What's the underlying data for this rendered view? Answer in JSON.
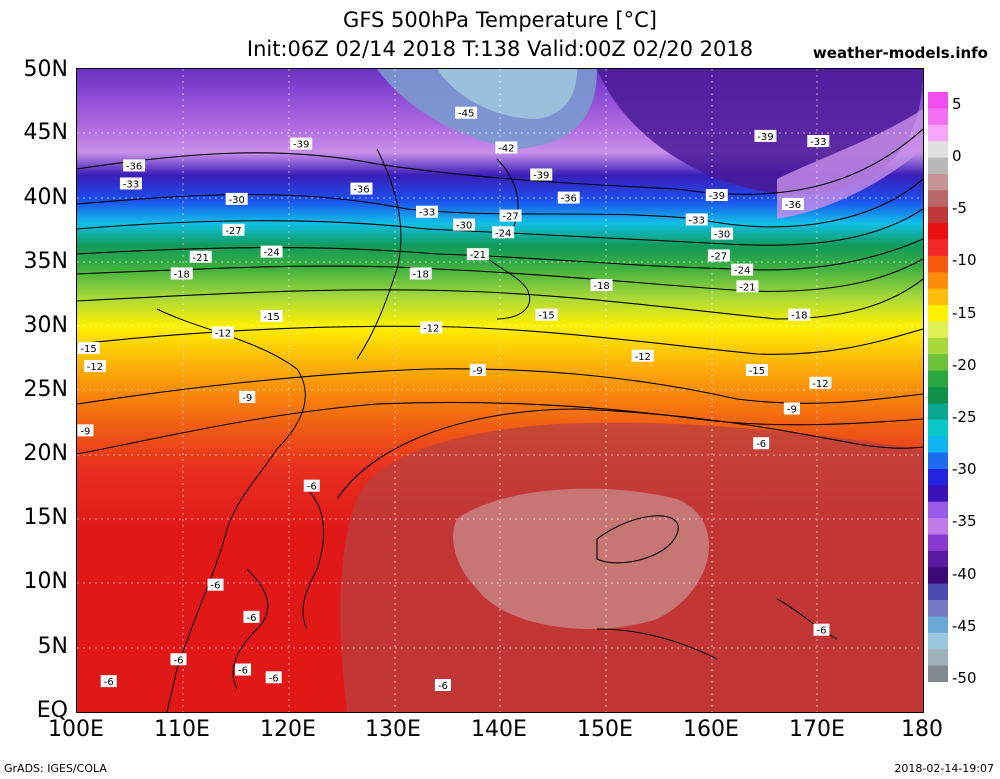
{
  "header": {
    "title_line1": "GFS 500hPa Temperature [°C]",
    "title_line2": "Init:06Z 02/14 2018 T:138 Valid:00Z 02/20 2018",
    "site": "weather-models.info"
  },
  "axes": {
    "lat_labels": [
      "50N",
      "45N",
      "40N",
      "35N",
      "30N",
      "25N",
      "20N",
      "15N",
      "10N",
      "5N",
      "EQ"
    ],
    "lon_labels": [
      "100E",
      "110E",
      "120E",
      "130E",
      "140E",
      "150E",
      "160E",
      "170E",
      "180"
    ]
  },
  "colorbar": {
    "labels": [
      "5",
      "0",
      "-5",
      "-10",
      "-15",
      "-20",
      "-25",
      "-30",
      "-35",
      "-40",
      "-45",
      "-50"
    ],
    "colors": [
      "#f04cf0",
      "#f26ff2",
      "#f7a6f7",
      "#e0e0e0",
      "#b8b8b8",
      "#c89494",
      "#b86666",
      "#c03838",
      "#e81010",
      "#f02828",
      "#f85a10",
      "#fa8c0a",
      "#fdbd0a",
      "#fff000",
      "#e0f050",
      "#a8d83a",
      "#6cc23a",
      "#2ca640",
      "#10904a",
      "#0aa890",
      "#0ac8c8",
      "#10b4f0",
      "#1c6cf0",
      "#2424e0",
      "#3a10b8",
      "#9a5ae8",
      "#c27ae8",
      "#8a3ad0",
      "#5a1aa0",
      "#3c0a78",
      "#4a4ab0",
      "#7878c8",
      "#6aa8d8",
      "#9ac8e0",
      "#a0b0b8",
      "#808890"
    ]
  },
  "map": {
    "contour_labels": [
      {
        "text": "-45",
        "lon": 136.8,
        "lat": 46.6
      },
      {
        "text": "-42",
        "lon": 140.6,
        "lat": 43.9
      },
      {
        "text": "-39",
        "lon": 121.2,
        "lat": 44.2
      },
      {
        "text": "-39",
        "lon": 143.9,
        "lat": 41.8
      },
      {
        "text": "-39",
        "lon": 165.1,
        "lat": 44.8
      },
      {
        "text": "-33",
        "lon": 170.1,
        "lat": 44.4
      },
      {
        "text": "-39",
        "lon": 160.5,
        "lat": 40.2
      },
      {
        "text": "-36",
        "lon": 105.4,
        "lat": 42.5
      },
      {
        "text": "-33",
        "lon": 105.1,
        "lat": 41.1
      },
      {
        "text": "-36",
        "lon": 126.9,
        "lat": 40.7
      },
      {
        "text": "-36",
        "lon": 146.5,
        "lat": 40.0
      },
      {
        "text": "-36",
        "lon": 167.7,
        "lat": 39.5
      },
      {
        "text": "-30",
        "lon": 115.1,
        "lat": 39.9
      },
      {
        "text": "-33",
        "lon": 133.1,
        "lat": 38.9
      },
      {
        "text": "-33",
        "lon": 158.6,
        "lat": 38.3
      },
      {
        "text": "-27",
        "lon": 141.0,
        "lat": 38.6
      },
      {
        "text": "-30",
        "lon": 136.6,
        "lat": 37.9
      },
      {
        "text": "-27",
        "lon": 114.8,
        "lat": 37.5
      },
      {
        "text": "-24",
        "lon": 140.3,
        "lat": 37.3
      },
      {
        "text": "-30",
        "lon": 161.0,
        "lat": 37.2
      },
      {
        "text": "-21",
        "lon": 111.7,
        "lat": 35.4
      },
      {
        "text": "-24",
        "lon": 118.4,
        "lat": 35.8
      },
      {
        "text": "-21",
        "lon": 137.9,
        "lat": 35.6
      },
      {
        "text": "-27",
        "lon": 160.7,
        "lat": 35.5
      },
      {
        "text": "-24",
        "lon": 162.9,
        "lat": 34.4
      },
      {
        "text": "-21",
        "lon": 163.4,
        "lat": 33.1
      },
      {
        "text": "-18",
        "lon": 109.9,
        "lat": 34.1
      },
      {
        "text": "-18",
        "lon": 132.5,
        "lat": 34.1
      },
      {
        "text": "-18",
        "lon": 149.6,
        "lat": 33.2
      },
      {
        "text": "-15",
        "lon": 118.4,
        "lat": 30.8
      },
      {
        "text": "-15",
        "lon": 144.4,
        "lat": 30.9
      },
      {
        "text": "-18",
        "lon": 168.3,
        "lat": 30.9
      },
      {
        "text": "-12",
        "lon": 113.8,
        "lat": 29.5
      },
      {
        "text": "-12",
        "lon": 133.5,
        "lat": 29.9
      },
      {
        "text": "-15",
        "lon": 101.1,
        "lat": 28.3
      },
      {
        "text": "-12",
        "lon": 101.7,
        "lat": 26.9
      },
      {
        "text": "-12",
        "lon": 153.5,
        "lat": 27.7
      },
      {
        "text": "-9",
        "lon": 137.9,
        "lat": 26.6
      },
      {
        "text": "-15",
        "lon": 164.3,
        "lat": 26.6
      },
      {
        "text": "-12",
        "lon": 170.3,
        "lat": 25.6
      },
      {
        "text": "-9",
        "lon": 116.1,
        "lat": 24.5
      },
      {
        "text": "-9",
        "lon": 167.6,
        "lat": 23.6
      },
      {
        "text": "-9",
        "lon": 100.8,
        "lat": 21.9
      },
      {
        "text": "-6",
        "lon": 164.7,
        "lat": 20.9
      },
      {
        "text": "-6",
        "lon": 122.2,
        "lat": 17.6
      },
      {
        "text": "-6",
        "lon": 113.1,
        "lat": 9.9
      },
      {
        "text": "-6",
        "lon": 116.5,
        "lat": 7.4
      },
      {
        "text": "-6",
        "lon": 170.4,
        "lat": 6.4
      },
      {
        "text": "-6",
        "lon": 109.6,
        "lat": 4.1
      },
      {
        "text": "-6",
        "lon": 115.7,
        "lat": 3.3
      },
      {
        "text": "-6",
        "lon": 118.6,
        "lat": 2.7
      },
      {
        "text": "-6",
        "lon": 103.0,
        "lat": 2.4
      },
      {
        "text": "-6",
        "lon": 134.6,
        "lat": 2.1
      }
    ]
  },
  "footer": {
    "left": "GrADS: IGES/COLA",
    "right": "2018-02-14-19:07"
  }
}
